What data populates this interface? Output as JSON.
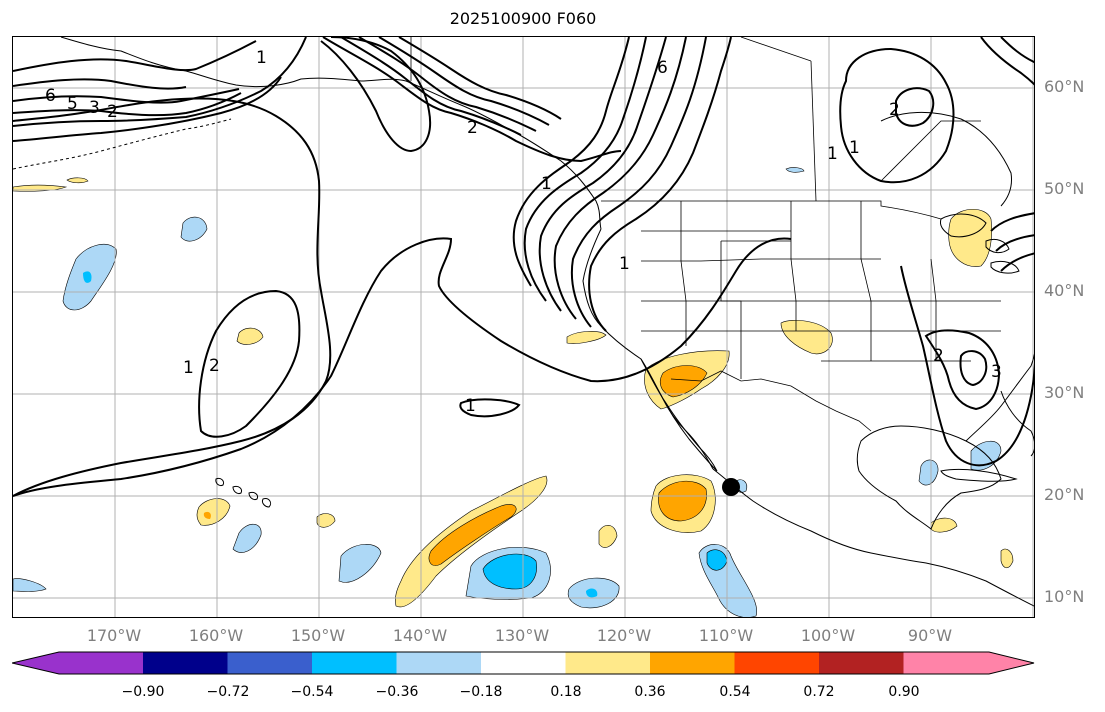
{
  "title": "2025100900 F060",
  "lat_labels": [
    "60°N",
    "50°N",
    "40°N",
    "30°N",
    "20°N",
    "10°N"
  ],
  "lon_labels": [
    "170°W",
    "160°W",
    "150°W",
    "140°W",
    "130°W",
    "120°W",
    "110°W",
    "100°W",
    "90°W"
  ],
  "contour_labels": [
    "6",
    "5",
    "3",
    "2",
    "1",
    "1",
    "2",
    "1",
    "2",
    "1",
    "6",
    "1",
    "1",
    "2",
    "2",
    "3",
    "1"
  ],
  "colorbar": {
    "colors": [
      "#9932cc",
      "#00008b",
      "#3a5fcd",
      "#00bfff",
      "#add8f6",
      "#ffffff",
      "#ffe98a",
      "#ffa500",
      "#ff4500",
      "#b22222",
      "#ff83a8"
    ],
    "tick_labels": [
      "−0.90",
      "−0.72",
      "−0.54",
      "−0.36",
      "−0.18",
      "0.18",
      "0.36",
      "0.54",
      "0.72",
      "0.90"
    ]
  },
  "legend_colors": {
    "light_blue": "#add8f6",
    "medium_blue": "#00bfff",
    "light_yellow": "#ffe98a",
    "orange": "#ffa500"
  }
}
